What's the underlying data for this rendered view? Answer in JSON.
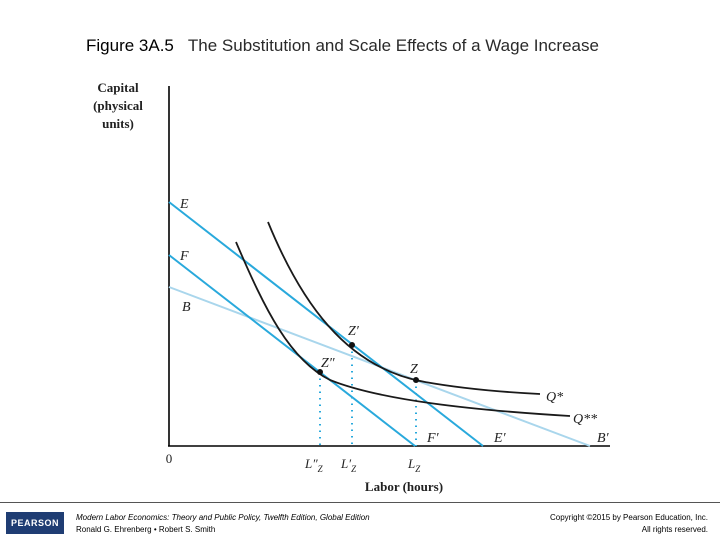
{
  "header": {
    "figure_number": "Figure 3A.5",
    "title": "The Substitution and Scale Effects of a Wage Increase"
  },
  "axes": {
    "y_label_lines": [
      "Capital",
      "(physical",
      "units)"
    ],
    "x_label": "Labor (hours)",
    "origin": "0"
  },
  "labels": {
    "E": "E",
    "F": "F",
    "B": "B",
    "F_prime": "F′",
    "E_prime": "E′",
    "B_prime": "B′",
    "Z_prime": "Z′",
    "Z_double_prime": "Z″",
    "Z": "Z",
    "Q_star": "Q*",
    "Q_double_star": "Q**",
    "L_double_prime_Z": "L″",
    "L_prime_Z": "L′",
    "L_Z": "L",
    "subscript_Z": "Z"
  },
  "colors": {
    "budget_line": "#29a9dc",
    "light_budget_line": "#a9d6ec",
    "isoquant": "#1a1a1a",
    "axis": "#000000",
    "logo_bg": "#1f3d73"
  },
  "footer": {
    "logo_text": "PEARSON",
    "book_title": "Modern Labor Economics: Theory and Public Policy, Twelfth Edition, Global Edition",
    "authors": "Ronald G. Ehrenberg • Robert S. Smith",
    "copyright": "Copyright ©2015 by Pearson Education, Inc.",
    "rights": "All rights reserved."
  }
}
